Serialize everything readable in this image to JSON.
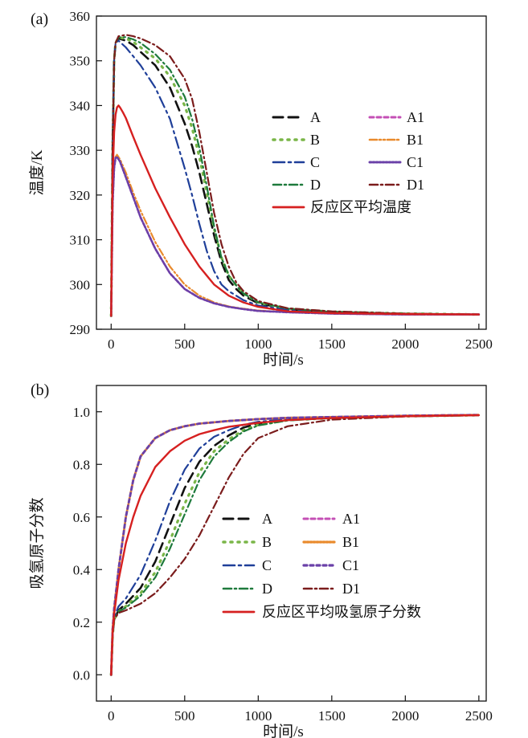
{
  "chart_data": [
    {
      "type": "line",
      "panel_label": "(a)",
      "xlabel": "时间/s",
      "ylabel": "温度/K",
      "xlim": [
        -100,
        2550
      ],
      "ylim": [
        290,
        360
      ],
      "xticks": [
        0,
        500,
        1000,
        1500,
        2000,
        2500
      ],
      "yticks": [
        290,
        300,
        310,
        320,
        330,
        340,
        350,
        360
      ],
      "grid": false,
      "legend_position": "center-right",
      "series": [
        {
          "name": "A",
          "color": "#111111",
          "dash": "12,7",
          "width": 2.6,
          "x": [
            0,
            10,
            20,
            30,
            50,
            100,
            150,
            200,
            300,
            400,
            500,
            550,
            600,
            650,
            700,
            750,
            800,
            850,
            900,
            1000,
            1200,
            1500,
            2000,
            2500
          ],
          "y": [
            293,
            330,
            350,
            354,
            355,
            354.5,
            353.5,
            352,
            349,
            344,
            336,
            331,
            325,
            318,
            311,
            305,
            301,
            299,
            297.5,
            295.8,
            294.5,
            293.8,
            293.4,
            293.3
          ]
        },
        {
          "name": "B",
          "color": "#7ab648",
          "dash": "2,7",
          "width": 3.2,
          "x": [
            0,
            10,
            20,
            30,
            50,
            100,
            150,
            200,
            300,
            400,
            500,
            550,
            600,
            650,
            700,
            750,
            800,
            850,
            900,
            1000,
            1200,
            1500,
            2000,
            2500
          ],
          "y": [
            293,
            330,
            350,
            354,
            355.2,
            355,
            354.2,
            353,
            350.5,
            346.5,
            340,
            335,
            328.5,
            320.5,
            312.5,
            306,
            302,
            299.8,
            298,
            296,
            294.6,
            293.9,
            293.5,
            293.3
          ]
        },
        {
          "name": "C",
          "color": "#1f3f99",
          "dash": "14,5,3,5",
          "width": 2.2,
          "x": [
            0,
            10,
            20,
            30,
            50,
            100,
            150,
            200,
            300,
            400,
            500,
            550,
            600,
            650,
            700,
            750,
            800,
            850,
            900,
            1000,
            1200,
            1500,
            2000,
            2500
          ],
          "y": [
            293,
            330,
            350,
            354,
            354.5,
            353,
            351,
            349,
            344,
            337,
            326,
            320,
            313.5,
            307.5,
            303,
            300,
            298.5,
            297.5,
            296.5,
            295.3,
            294.3,
            293.8,
            293.4,
            293.3
          ]
        },
        {
          "name": "D",
          "color": "#1e7a3c",
          "dash": "10,4,2,4",
          "width": 2.2,
          "x": [
            0,
            10,
            20,
            30,
            50,
            100,
            150,
            200,
            300,
            400,
            500,
            550,
            600,
            650,
            700,
            750,
            800,
            850,
            900,
            1000,
            1200,
            1500,
            2000,
            2500
          ],
          "y": [
            293,
            330,
            350,
            354,
            355.2,
            355.3,
            354.8,
            354,
            351.5,
            348,
            342,
            337,
            330.5,
            322,
            313,
            306,
            302,
            299.8,
            298,
            296,
            294.6,
            293.9,
            293.5,
            293.3
          ]
        },
        {
          "name": "A1",
          "color": "#c44fb5",
          "dash": "5,4",
          "width": 2.6,
          "x": [
            0,
            10,
            20,
            30,
            40,
            60,
            100,
            150,
            200,
            300,
            400,
            500,
            600,
            700,
            800,
            900,
            1000,
            1200,
            1500,
            2000,
            2500
          ],
          "y": [
            293,
            318,
            326,
            328.3,
            328.5,
            327.5,
            324,
            319.5,
            315,
            308,
            302.5,
            299,
            297,
            295.8,
            295,
            294.5,
            294.1,
            293.8,
            293.5,
            293.3,
            293.3
          ]
        },
        {
          "name": "B1",
          "color": "#e98a2c",
          "dash": "9,3,2,3,2,3",
          "width": 2.2,
          "x": [
            0,
            10,
            20,
            30,
            40,
            60,
            100,
            150,
            200,
            300,
            400,
            500,
            600,
            700,
            800,
            900,
            1000,
            1200,
            1500,
            2000,
            2500
          ],
          "y": [
            293,
            318,
            326,
            328.5,
            329,
            328,
            325,
            320.5,
            316.5,
            309.5,
            304,
            300,
            297.5,
            296,
            295.1,
            294.6,
            294.2,
            293.8,
            293.5,
            293.3,
            293.3
          ]
        },
        {
          "name": "C1",
          "color": "#6a40a8",
          "dash": "2,2",
          "width": 2.6,
          "x": [
            0,
            10,
            20,
            30,
            40,
            60,
            100,
            150,
            200,
            300,
            400,
            500,
            600,
            700,
            800,
            900,
            1000,
            1200,
            1500,
            2000,
            2500
          ],
          "y": [
            293,
            318,
            326,
            328.3,
            328.5,
            327.5,
            324,
            319.5,
            315,
            308,
            302.5,
            299,
            297,
            295.8,
            295,
            294.5,
            294.1,
            293.8,
            293.5,
            293.3,
            293.3
          ]
        },
        {
          "name": "D1",
          "color": "#7b1c1c",
          "dash": "10,4,2,4",
          "width": 2.2,
          "x": [
            0,
            10,
            20,
            30,
            50,
            100,
            150,
            200,
            300,
            400,
            500,
            550,
            600,
            650,
            700,
            750,
            800,
            850,
            900,
            1000,
            1200,
            1500,
            2000,
            2500
          ],
          "y": [
            293,
            330,
            350,
            354,
            355.5,
            355.8,
            355.5,
            355,
            353.5,
            351,
            346,
            341.5,
            334,
            325,
            316,
            309,
            304,
            300.5,
            298.5,
            296.3,
            294.7,
            294,
            293.5,
            293.3
          ]
        },
        {
          "name": "反应区平均温度",
          "color": "#d62020",
          "dash": "",
          "width": 2.4,
          "x": [
            0,
            10,
            20,
            30,
            40,
            50,
            60,
            80,
            100,
            150,
            200,
            300,
            400,
            500,
            600,
            700,
            800,
            900,
            1000,
            1200,
            1500,
            2000,
            2500
          ],
          "y": [
            293,
            324,
            334,
            338,
            339.6,
            340,
            339.6,
            338.5,
            337.2,
            333,
            329,
            321.5,
            315,
            309,
            304,
            300,
            297.5,
            296,
            295,
            294,
            293.6,
            293.4,
            293.3
          ]
        }
      ]
    },
    {
      "type": "line",
      "panel_label": "(b)",
      "xlabel": "时间/s",
      "ylabel": "吸氢原子分数",
      "xlim": [
        -100,
        2550
      ],
      "ylim": [
        -0.1,
        1.1
      ],
      "xticks": [
        0,
        500,
        1000,
        1500,
        2000,
        2500
      ],
      "yticks": [
        0.0,
        0.2,
        0.4,
        0.6,
        0.8,
        1.0
      ],
      "grid": false,
      "legend_position": "center-right",
      "series": [
        {
          "name": "A",
          "color": "#111111",
          "dash": "12,7",
          "width": 2.6,
          "x": [
            0,
            10,
            20,
            50,
            100,
            200,
            300,
            400,
            500,
            600,
            700,
            800,
            900,
            1000,
            1200,
            1500,
            2000,
            2500
          ],
          "y": [
            0,
            0.15,
            0.21,
            0.245,
            0.27,
            0.33,
            0.43,
            0.57,
            0.71,
            0.81,
            0.87,
            0.91,
            0.94,
            0.955,
            0.97,
            0.977,
            0.983,
            0.987
          ]
        },
        {
          "name": "B",
          "color": "#7ab648",
          "dash": "2,7",
          "width": 3.2,
          "x": [
            0,
            10,
            20,
            50,
            100,
            200,
            300,
            400,
            500,
            600,
            700,
            800,
            900,
            1000,
            1200,
            1500,
            2000,
            2500
          ],
          "y": [
            0,
            0.15,
            0.21,
            0.24,
            0.26,
            0.31,
            0.39,
            0.51,
            0.65,
            0.77,
            0.85,
            0.895,
            0.93,
            0.95,
            0.968,
            0.976,
            0.983,
            0.987
          ]
        },
        {
          "name": "C",
          "color": "#1f3f99",
          "dash": "14,5,3,5",
          "width": 2.2,
          "x": [
            0,
            10,
            20,
            50,
            100,
            200,
            300,
            400,
            500,
            600,
            700,
            800,
            900,
            1000,
            1200,
            1500,
            2000,
            2500
          ],
          "y": [
            0,
            0.16,
            0.22,
            0.26,
            0.29,
            0.38,
            0.51,
            0.66,
            0.78,
            0.86,
            0.905,
            0.93,
            0.95,
            0.962,
            0.972,
            0.978,
            0.984,
            0.987
          ]
        },
        {
          "name": "D",
          "color": "#1e7a3c",
          "dash": "10,4,2,4",
          "width": 2.2,
          "x": [
            0,
            10,
            20,
            50,
            100,
            200,
            300,
            400,
            500,
            600,
            700,
            800,
            900,
            1000,
            1200,
            1500,
            2000,
            2500
          ],
          "y": [
            0,
            0.15,
            0.21,
            0.24,
            0.255,
            0.3,
            0.37,
            0.48,
            0.61,
            0.74,
            0.83,
            0.885,
            0.925,
            0.948,
            0.967,
            0.976,
            0.983,
            0.987
          ]
        },
        {
          "name": "A1",
          "color": "#c44fb5",
          "dash": "5,4",
          "width": 2.6,
          "x": [
            0,
            10,
            20,
            50,
            100,
            150,
            200,
            300,
            400,
            500,
            600,
            800,
            1000,
            1200,
            1500,
            2000,
            2500
          ],
          "y": [
            0,
            0.17,
            0.25,
            0.4,
            0.6,
            0.74,
            0.83,
            0.9,
            0.93,
            0.945,
            0.955,
            0.965,
            0.972,
            0.977,
            0.98,
            0.985,
            0.988
          ]
        },
        {
          "name": "B1",
          "color": "#e98a2c",
          "dash": "2,2",
          "width": 2.8,
          "x": [
            0,
            10,
            20,
            50,
            100,
            150,
            200,
            300,
            400,
            500,
            600,
            800,
            1000,
            1200,
            1500,
            2000,
            2500
          ],
          "y": [
            0,
            0.17,
            0.25,
            0.4,
            0.6,
            0.74,
            0.83,
            0.9,
            0.93,
            0.945,
            0.955,
            0.965,
            0.972,
            0.977,
            0.98,
            0.985,
            0.988
          ]
        },
        {
          "name": "C1",
          "color": "#6a40a8",
          "dash": "4,4",
          "width": 2.8,
          "x": [
            0,
            10,
            20,
            50,
            100,
            150,
            200,
            300,
            400,
            500,
            600,
            800,
            1000,
            1200,
            1500,
            2000,
            2500
          ],
          "y": [
            0,
            0.17,
            0.25,
            0.4,
            0.6,
            0.74,
            0.83,
            0.9,
            0.93,
            0.945,
            0.955,
            0.965,
            0.972,
            0.977,
            0.98,
            0.985,
            0.988
          ]
        },
        {
          "name": "D1",
          "color": "#7b1c1c",
          "dash": "10,4,2,4",
          "width": 2.2,
          "x": [
            0,
            10,
            20,
            50,
            100,
            200,
            300,
            400,
            500,
            600,
            700,
            800,
            900,
            1000,
            1200,
            1500,
            2000,
            2500
          ],
          "y": [
            0,
            0.15,
            0.21,
            0.235,
            0.245,
            0.27,
            0.31,
            0.37,
            0.44,
            0.53,
            0.64,
            0.75,
            0.84,
            0.9,
            0.945,
            0.97,
            0.982,
            0.987
          ]
        },
        {
          "name": "反应区平均吸氢原子分数",
          "color": "#d62020",
          "dash": "",
          "width": 2.4,
          "x": [
            0,
            10,
            20,
            50,
            100,
            150,
            200,
            300,
            400,
            500,
            600,
            700,
            800,
            1000,
            1200,
            1500,
            2000,
            2500
          ],
          "y": [
            0,
            0.16,
            0.23,
            0.36,
            0.5,
            0.6,
            0.68,
            0.79,
            0.85,
            0.89,
            0.915,
            0.93,
            0.943,
            0.958,
            0.968,
            0.976,
            0.983,
            0.987
          ]
        }
      ]
    }
  ]
}
